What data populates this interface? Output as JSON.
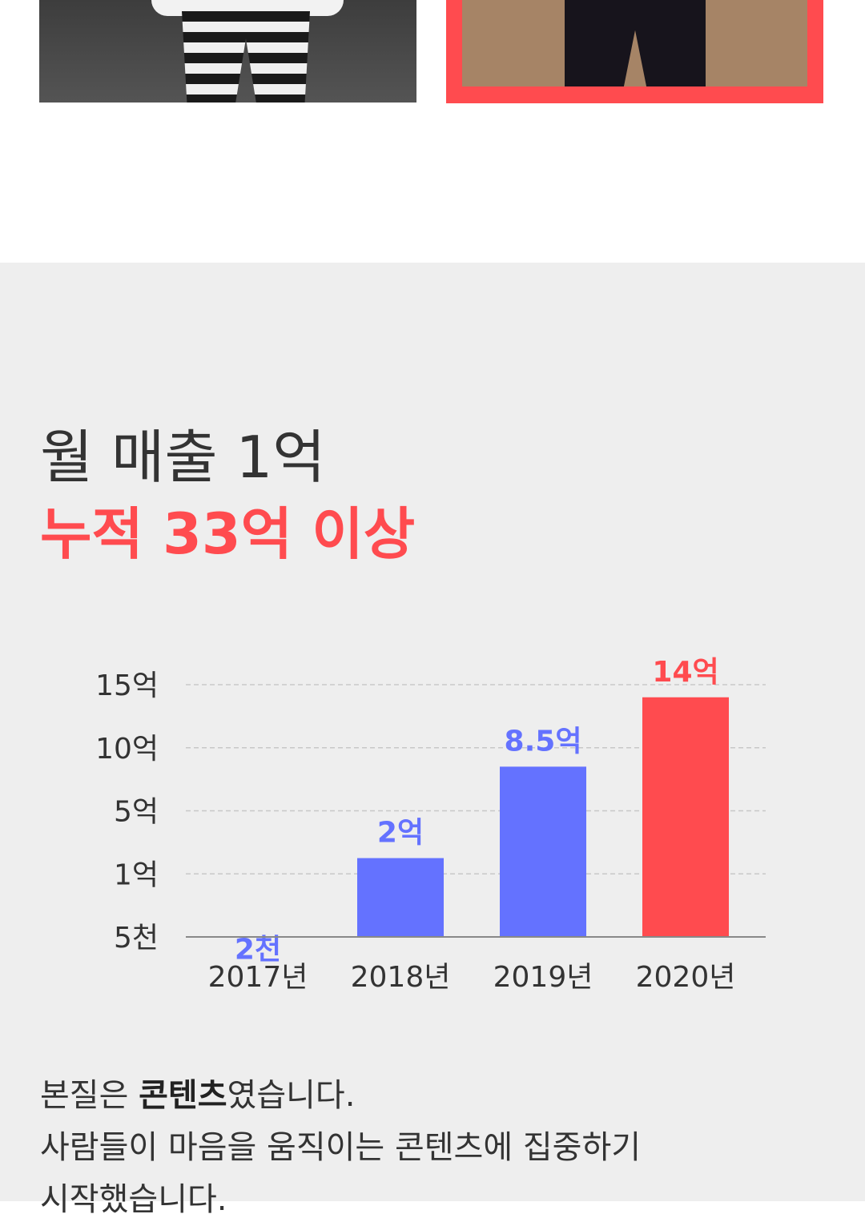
{
  "headline": {
    "line1": "월 매출 1억",
    "line2": "누적 33억 이상"
  },
  "colors": {
    "accent": "#ff4b4f",
    "bar": "#6472ff",
    "background": "#eeeeee"
  },
  "chart_data": {
    "type": "bar",
    "categories": [
      "2017년",
      "2018년",
      "2019년",
      "2020년"
    ],
    "values": [
      0.2,
      2,
      8.5,
      14
    ],
    "value_labels": [
      "2천",
      "2억",
      "8.5억",
      "14억"
    ],
    "highlight_index": 3,
    "y_ticks": [
      {
        "label": "5천",
        "value": 0.5
      },
      {
        "label": "1억",
        "value": 1
      },
      {
        "label": "5억",
        "value": 5
      },
      {
        "label": "10억",
        "value": 10
      },
      {
        "label": "15억",
        "value": 15
      }
    ],
    "grid": true,
    "title": "",
    "xlabel": "",
    "ylabel": ""
  },
  "body": {
    "line1_prefix": "본질은 ",
    "line1_bold": "콘텐츠",
    "line1_suffix": "였습니다.",
    "line2": "사람들이 마음을 움직이는 콘텐츠에 집중하기",
    "line3": "시작했습니다."
  }
}
